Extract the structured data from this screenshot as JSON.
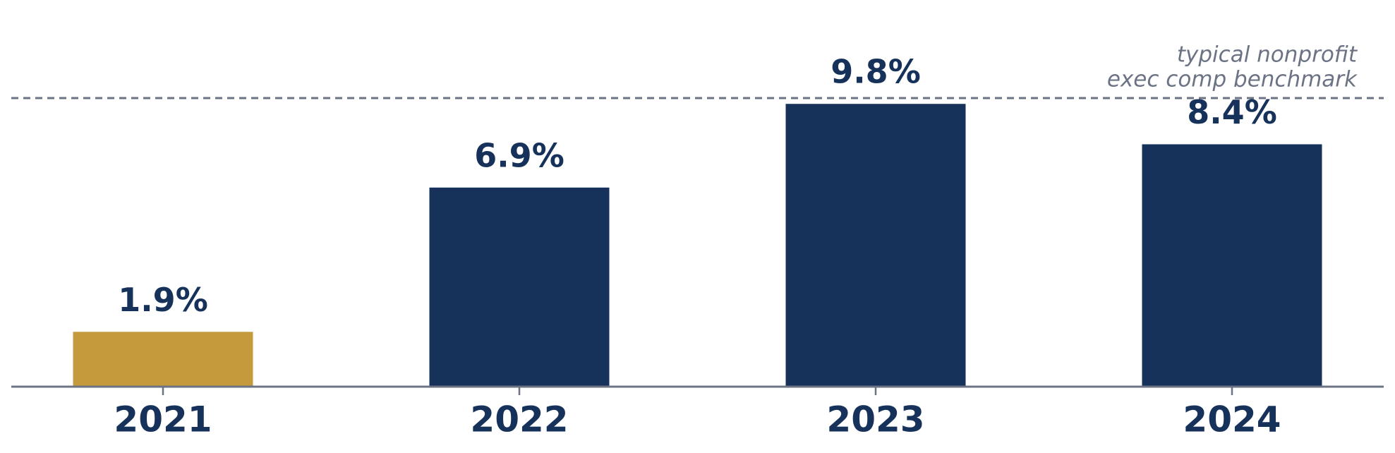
{
  "chart_data": {
    "type": "bar",
    "categories": [
      "2021",
      "2022",
      "2023",
      "2024"
    ],
    "values": [
      1.9,
      6.9,
      9.8,
      8.4
    ],
    "value_labels": [
      "1.9%",
      "6.9%",
      "9.8%",
      "8.4%"
    ],
    "colors": [
      "#c49a3c",
      "#17325a",
      "#17325a",
      "#17325a"
    ],
    "ylim": [
      0,
      13.4
    ],
    "grid": false,
    "benchmark": {
      "value": 10,
      "label_lines": [
        "typical nonprofit",
        "exec comp benchmark"
      ],
      "color": "#6b7384"
    }
  }
}
